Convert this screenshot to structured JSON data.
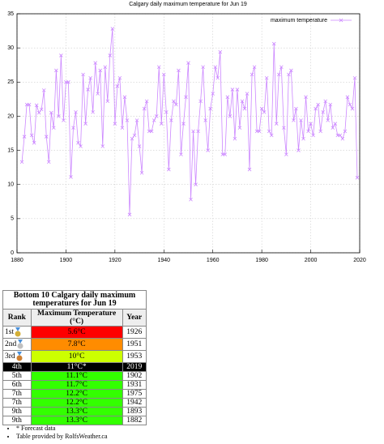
{
  "chart_data": {
    "type": "line",
    "title": "Calgary daily maximum temperature for Jun 19",
    "x": [
      1882,
      1883,
      1884,
      1885,
      1886,
      1887,
      1888,
      1889,
      1890,
      1891,
      1892,
      1893,
      1894,
      1895,
      1896,
      1897,
      1898,
      1899,
      1900,
      1901,
      1902,
      1903,
      1904,
      1905,
      1906,
      1907,
      1908,
      1909,
      1910,
      1911,
      1912,
      1913,
      1914,
      1915,
      1916,
      1917,
      1918,
      1919,
      1920,
      1921,
      1922,
      1923,
      1924,
      1925,
      1926,
      1927,
      1928,
      1929,
      1930,
      1931,
      1932,
      1933,
      1934,
      1935,
      1936,
      1937,
      1938,
      1939,
      1940,
      1941,
      1942,
      1943,
      1944,
      1945,
      1946,
      1947,
      1948,
      1949,
      1950,
      1951,
      1952,
      1953,
      1954,
      1955,
      1956,
      1957,
      1958,
      1959,
      1960,
      1961,
      1962,
      1963,
      1964,
      1965,
      1966,
      1967,
      1968,
      1969,
      1970,
      1971,
      1972,
      1973,
      1974,
      1975,
      1976,
      1977,
      1978,
      1979,
      1980,
      1981,
      1982,
      1983,
      1984,
      1985,
      1986,
      1987,
      1988,
      1989,
      1990,
      1991,
      1992,
      1993,
      1994,
      1995,
      1996,
      1997,
      1998,
      1999,
      2000,
      2001,
      2002,
      2003,
      2004,
      2005,
      2006,
      2007,
      2008,
      2009,
      2010,
      2011,
      2012,
      2013,
      2014,
      2015,
      2016,
      2017,
      2018,
      2019
    ],
    "series": [
      {
        "name": "maximum temperature",
        "color": "#cc88ff",
        "values": [
          13.3,
          17,
          21.7,
          21.7,
          17.2,
          16.1,
          21.6,
          20.5,
          21,
          23.8,
          17,
          13.3,
          20.5,
          18.3,
          26.7,
          20,
          28.9,
          19.4,
          25,
          25,
          11.1,
          18.3,
          20.6,
          16.1,
          15.6,
          26.1,
          18.9,
          23.9,
          25.6,
          20.6,
          27.8,
          23.3,
          26.7,
          15.6,
          27.2,
          22.2,
          28.9,
          32.8,
          18.9,
          24.4,
          25.6,
          18.3,
          22.8,
          19.4,
          5.6,
          16.7,
          17.2,
          19.4,
          15.6,
          11.7,
          21.1,
          22.2,
          17.8,
          17.8,
          19.4,
          20,
          27.2,
          18.9,
          26.1,
          20.6,
          12.2,
          19.4,
          22.2,
          21.7,
          26.7,
          14.4,
          18.9,
          22.8,
          27.8,
          7.8,
          17.8,
          10,
          17.8,
          22.2,
          27.2,
          19.4,
          15,
          21.1,
          23.3,
          27.2,
          25.6,
          29.4,
          14.4,
          14.4,
          22.8,
          20,
          23.9,
          16.7,
          23.9,
          18.3,
          22.2,
          21.1,
          23.3,
          12.2,
          26.1,
          27.2,
          17.8,
          17.8,
          21.1,
          20.6,
          25.6,
          17.8,
          17.2,
          30.6,
          18.9,
          26.1,
          27.2,
          18.3,
          14.4,
          26.1,
          26.7,
          19.4,
          21.1,
          15,
          19.4,
          16.7,
          22.8,
          17.8,
          18.9,
          17.2,
          21.1,
          21.7,
          17.8,
          20.6,
          22.2,
          19.4,
          21.7,
          18.3,
          18.9,
          17.2,
          17.2,
          16.7,
          17.8,
          22.8,
          21.7,
          21.1,
          25.6,
          11
        ]
      }
    ],
    "xlim": [
      1880,
      2020
    ],
    "xticks": [
      1880,
      1900,
      1920,
      1940,
      1960,
      1980,
      2000,
      2020
    ],
    "ylim": [
      0,
      35
    ],
    "yticks": [
      0,
      5,
      10,
      15,
      20,
      25,
      30,
      35
    ],
    "grid": true,
    "legend": "upper right"
  },
  "table": {
    "title": "Bottom 10 Calgary daily maximum temperatures for Jun 19",
    "headers": [
      "Rank",
      "Maximum Temperature (°C)",
      "Year"
    ],
    "rows": [
      {
        "rank": "1st",
        "temp": "5.6°C",
        "year": 1926,
        "color": "#ff0000"
      },
      {
        "rank": "2nd",
        "temp": "7.8°C",
        "year": 1951,
        "color": "#ff8c00"
      },
      {
        "rank": "3rd",
        "temp": "10°C",
        "year": 1953,
        "color": "#ccff00"
      },
      {
        "rank": "4th",
        "temp": "11°C*",
        "year": 2019,
        "color": "#000000"
      },
      {
        "rank": "5th",
        "temp": "11.1°C",
        "year": 1902,
        "color": "#33ff00"
      },
      {
        "rank": "6th",
        "temp": "11.7°C",
        "year": 1931,
        "color": "#33ff00"
      },
      {
        "rank": "7th",
        "temp": "12.2°C",
        "year": 1975,
        "color": "#33ff00"
      },
      {
        "rank": "7th",
        "temp": "12.2°C",
        "year": 1942,
        "color": "#33ff00"
      },
      {
        "rank": "9th",
        "temp": "13.3°C",
        "year": 1893,
        "color": "#33ff00"
      },
      {
        "rank": "9th",
        "temp": "13.3°C",
        "year": 1882,
        "color": "#33ff00"
      }
    ]
  },
  "notes": [
    "* Forecast data",
    "Table provided by RolfsWeather.ca"
  ]
}
